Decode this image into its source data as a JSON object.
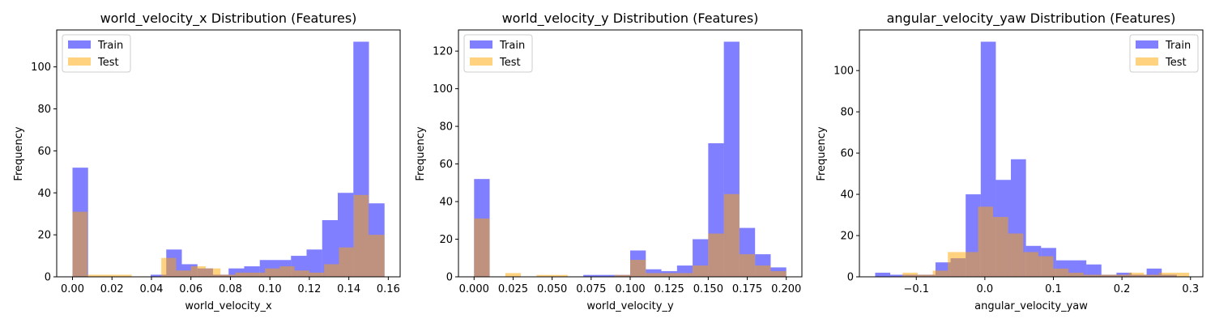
{
  "colors": {
    "train": "#0000ff",
    "test": "#ffa500",
    "train_opacity": 0.5,
    "test_opacity": 0.5
  },
  "chart_data": [
    {
      "type": "histogram",
      "title": "world_velocity_x Distribution (Features)",
      "xlabel": "world_velocity_x",
      "ylabel": "Frequency",
      "xlim": [
        -0.008,
        0.166
      ],
      "ylim": [
        0,
        117.6
      ],
      "xticks": [
        0.0,
        0.02,
        0.04,
        0.06,
        0.08,
        0.1,
        0.12,
        0.14,
        0.16
      ],
      "xtick_labels": [
        "0.00",
        "0.02",
        "0.04",
        "0.06",
        "0.08",
        "0.10",
        "0.12",
        "0.14",
        "0.16"
      ],
      "yticks": [
        0,
        20,
        40,
        60,
        80,
        100
      ],
      "ytick_labels": [
        "0",
        "20",
        "40",
        "60",
        "80",
        "100"
      ],
      "legend": {
        "position": "upper-left",
        "entries": [
          "Train",
          "Test"
        ]
      },
      "grid": false,
      "series": [
        {
          "name": "Train",
          "bins": [
            [
              0.0,
              0.0079,
              52
            ],
            [
              0.0396,
              0.0475,
              1
            ],
            [
              0.0475,
              0.0554,
              13
            ],
            [
              0.0554,
              0.0633,
              6
            ],
            [
              0.0633,
              0.0712,
              4
            ],
            [
              0.0712,
              0.0791,
              1
            ],
            [
              0.0791,
              0.087,
              4
            ],
            [
              0.087,
              0.0949,
              5
            ],
            [
              0.0949,
              0.1028,
              8
            ],
            [
              0.1028,
              0.1107,
              8
            ],
            [
              0.1107,
              0.1186,
              10
            ],
            [
              0.1186,
              0.1265,
              13
            ],
            [
              0.1265,
              0.1344,
              27
            ],
            [
              0.1344,
              0.1423,
              40
            ],
            [
              0.1423,
              0.1502,
              112
            ],
            [
              0.1502,
              0.1581,
              35
            ]
          ]
        },
        {
          "name": "Test",
          "bins": [
            [
              0.0,
              0.0075,
              31
            ],
            [
              0.0075,
              0.015,
              1
            ],
            [
              0.015,
              0.0225,
              1
            ],
            [
              0.0225,
              0.03,
              1
            ],
            [
              0.045,
              0.0525,
              9
            ],
            [
              0.0525,
              0.06,
              3
            ],
            [
              0.06,
              0.0675,
              5
            ],
            [
              0.0675,
              0.075,
              4
            ],
            [
              0.075,
              0.0825,
              1
            ],
            [
              0.0825,
              0.09,
              2
            ],
            [
              0.09,
              0.0975,
              2
            ],
            [
              0.0975,
              0.105,
              4
            ],
            [
              0.105,
              0.1125,
              5
            ],
            [
              0.1125,
              0.12,
              3
            ],
            [
              0.12,
              0.1275,
              2
            ],
            [
              0.1275,
              0.135,
              6
            ],
            [
              0.135,
              0.1425,
              14
            ],
            [
              0.1425,
              0.15,
              39
            ],
            [
              0.15,
              0.1581,
              20
            ]
          ]
        }
      ]
    },
    {
      "type": "histogram",
      "title": "world_velocity_y Distribution (Features)",
      "xlabel": "world_velocity_y",
      "ylabel": "Frequency",
      "xlim": [
        -0.01,
        0.21
      ],
      "ylim": [
        0,
        131.25
      ],
      "xticks": [
        0.0,
        0.025,
        0.05,
        0.075,
        0.1,
        0.125,
        0.15,
        0.175,
        0.2
      ],
      "xtick_labels": [
        "0.000",
        "0.025",
        "0.050",
        "0.075",
        "0.100",
        "0.125",
        "0.150",
        "0.175",
        "0.200"
      ],
      "yticks": [
        0,
        20,
        40,
        60,
        80,
        100,
        120
      ],
      "ytick_labels": [
        "0",
        "20",
        "40",
        "60",
        "80",
        "100",
        "120"
      ],
      "legend": {
        "position": "upper-left",
        "entries": [
          "Train",
          "Test"
        ]
      },
      "grid": false,
      "series": [
        {
          "name": "Train",
          "bins": [
            [
              0.0,
              0.01,
              52
            ],
            [
              0.07,
              0.08,
              1
            ],
            [
              0.08,
              0.09,
              1
            ],
            [
              0.09,
              0.1,
              1
            ],
            [
              0.1,
              0.11,
              14
            ],
            [
              0.11,
              0.12,
              4
            ],
            [
              0.12,
              0.13,
              3
            ],
            [
              0.13,
              0.14,
              6
            ],
            [
              0.14,
              0.15,
              20
            ],
            [
              0.15,
              0.16,
              71
            ],
            [
              0.16,
              0.17,
              125
            ],
            [
              0.17,
              0.18,
              26
            ],
            [
              0.18,
              0.19,
              12
            ],
            [
              0.19,
              0.2,
              5
            ]
          ]
        },
        {
          "name": "Test",
          "bins": [
            [
              0.0,
              0.01,
              31
            ],
            [
              0.02,
              0.03,
              2
            ],
            [
              0.04,
              0.05,
              1
            ],
            [
              0.05,
              0.06,
              1
            ],
            [
              0.09,
              0.1,
              1
            ],
            [
              0.1,
              0.11,
              9
            ],
            [
              0.11,
              0.12,
              2
            ],
            [
              0.12,
              0.13,
              2
            ],
            [
              0.13,
              0.14,
              2
            ],
            [
              0.14,
              0.15,
              6
            ],
            [
              0.15,
              0.16,
              23
            ],
            [
              0.16,
              0.17,
              44
            ],
            [
              0.17,
              0.18,
              12
            ],
            [
              0.18,
              0.19,
              6
            ],
            [
              0.19,
              0.2,
              3
            ]
          ]
        }
      ]
    },
    {
      "type": "histogram",
      "title": "angular_velocity_yaw Distribution (Features)",
      "xlabel": "angular_velocity_yaw",
      "ylabel": "Frequency",
      "xlim": [
        -0.183,
        0.318
      ],
      "ylim": [
        0,
        119.7
      ],
      "xticks": [
        -0.1,
        0.0,
        0.1,
        0.2,
        0.3
      ],
      "xtick_labels": [
        "−0.1",
        "0.0",
        "0.1",
        "0.2",
        "0.3"
      ],
      "yticks": [
        0,
        20,
        40,
        60,
        80,
        100
      ],
      "ytick_labels": [
        "0",
        "20",
        "40",
        "60",
        "80",
        "100"
      ],
      "legend": {
        "position": "upper-right",
        "entries": [
          "Train",
          "Test"
        ]
      },
      "grid": false,
      "series": [
        {
          "name": "Train",
          "bins": [
            [
              -0.16,
              -0.138,
              2
            ],
            [
              -0.138,
              -0.116,
              1
            ],
            [
              -0.116,
              -0.094,
              1
            ],
            [
              -0.094,
              -0.072,
              1
            ],
            [
              -0.072,
              -0.05,
              7
            ],
            [
              -0.05,
              -0.028,
              9
            ],
            [
              -0.028,
              -0.006,
              40
            ],
            [
              -0.006,
              0.016,
              114
            ],
            [
              0.016,
              0.038,
              47
            ],
            [
              0.038,
              0.06,
              57
            ],
            [
              0.06,
              0.082,
              15
            ],
            [
              0.082,
              0.104,
              14
            ],
            [
              0.104,
              0.126,
              8
            ],
            [
              0.126,
              0.148,
              8
            ],
            [
              0.148,
              0.17,
              6
            ],
            [
              0.17,
              0.192,
              1
            ],
            [
              0.192,
              0.214,
              2
            ],
            [
              0.214,
              0.236,
              1
            ],
            [
              0.236,
              0.258,
              4
            ],
            [
              0.258,
              0.28,
              1
            ]
          ]
        },
        {
          "name": "Test",
          "bins": [
            [
              -0.12,
              -0.098,
              2
            ],
            [
              -0.098,
              -0.076,
              1
            ],
            [
              -0.076,
              -0.054,
              3
            ],
            [
              -0.054,
              -0.032,
              12
            ],
            [
              -0.032,
              -0.01,
              12
            ],
            [
              -0.01,
              0.012,
              34
            ],
            [
              0.012,
              0.034,
              29
            ],
            [
              0.034,
              0.056,
              21
            ],
            [
              0.056,
              0.078,
              12
            ],
            [
              0.078,
              0.1,
              10
            ],
            [
              0.1,
              0.122,
              4
            ],
            [
              0.122,
              0.144,
              2
            ],
            [
              0.144,
              0.166,
              1
            ],
            [
              0.166,
              0.188,
              1
            ],
            [
              0.188,
              0.21,
              1
            ],
            [
              0.21,
              0.232,
              2
            ],
            [
              0.232,
              0.254,
              1
            ],
            [
              0.254,
              0.276,
              2
            ],
            [
              0.276,
              0.298,
              2
            ]
          ]
        }
      ]
    }
  ]
}
